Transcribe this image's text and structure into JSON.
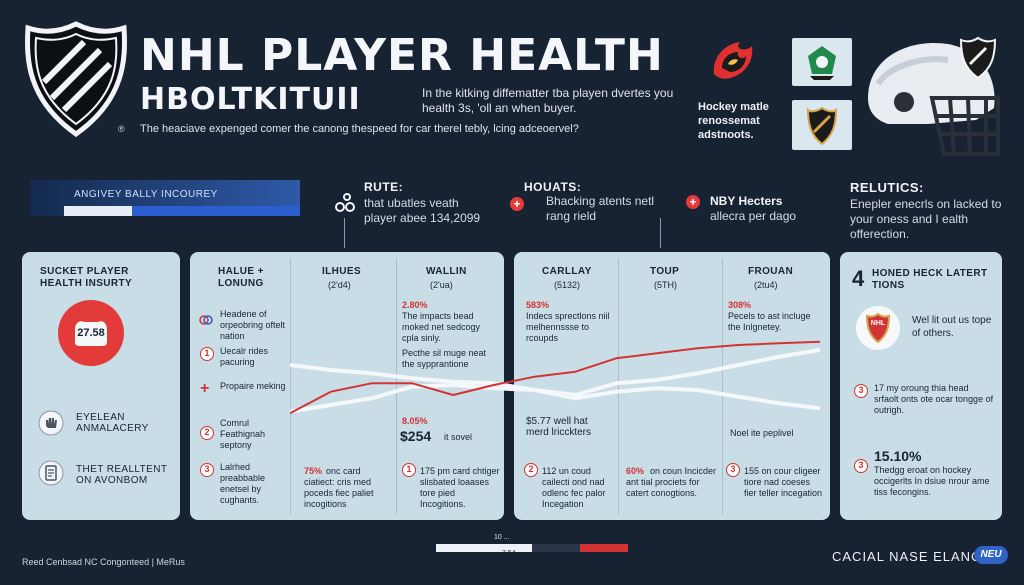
{
  "header": {
    "title_line1": "NHL PLAYER HEALTH",
    "title_line2": "HBOLTKITUII",
    "reg_mark": "®",
    "intro_text": "In the kitking diffematter tba playen dvertes you health 3s, 'oll an when buyer.",
    "description": "The heaciave expenged comer the canong thespeed for car therel tebly, lcing adceoervel?",
    "hockey_text": "Hockey matle renossemat adstnoots.",
    "logo_text": "NHL"
  },
  "top_bar": {
    "label": "ANGIVEY BALLY INCOUREY",
    "fill_pct": 0.25
  },
  "mid_labels": {
    "rute_title": "RUTE:",
    "rute_text": "that ubatles veath player abee 134,2099",
    "houats_title": "HOUATS:",
    "houats_text": "Bhacking atents netl rang rield",
    "nby_title": "NBY Hecters",
    "nby_text": "allecra per dago",
    "relutics_title": "RELUTICS:",
    "relutics_text": "Enepler enecrls on lacked to your oness and I ealth offerection."
  },
  "panel1": {
    "title": "SUCKET PLAYER HEALTH INSURTY",
    "badge_value": "27.58",
    "item1": "EYELEAN ANMALACERY",
    "item2": "THET REALLTENT ON AVONBOM"
  },
  "panel2": {
    "col_headers": [
      {
        "title": "HALUE + LONUNG",
        "sub": ""
      },
      {
        "title": "ILHUES",
        "sub": "(2'd4)"
      },
      {
        "title": "WALLIN",
        "sub": "(2'ua)"
      }
    ],
    "list": [
      {
        "num": "",
        "text": "Headene of orpeobring oftelt nation"
      },
      {
        "num": "1",
        "text": "Uecalr rides pacuring"
      },
      {
        "num": "",
        "text": "Propaire meking"
      },
      {
        "num": "2",
        "text": "Comrul Feathignah septony"
      },
      {
        "num": "3",
        "text": "Lalrhed preabbable enetsel by cughants."
      }
    ],
    "stat_pct": "2.80%",
    "stat_text": "The impacts bead moked net sedcogy cpla sinly.",
    "practice_text": "Pecthe sil muge neat the sypprantione",
    "value_pct": "8.05%",
    "value_big": "$254",
    "value_suffix": "it sovel",
    "bottom1_pct": "75%",
    "bottom1_text": "onc card ciatiect: cris med poceds fiec paliet incogitions",
    "bottom2_num": "1",
    "bottom2_text": "175 pm card chtiger slisbated loaases tore pied Incogitions."
  },
  "panel3": {
    "col_headers": [
      {
        "title": "CARLLAY",
        "sub": "(5132)"
      },
      {
        "title": "TOUP",
        "sub": "(5TH)"
      },
      {
        "title": "FROUAN",
        "sub": "(2tu4)"
      }
    ],
    "stat1_pct": "583%",
    "stat1_text": "Indecs sprectlons niil melhennssse to rcoupds",
    "stat2_pct": "308%",
    "stat2_text": "Pecels to ast incluge the Inlgnetey.",
    "money_text": "$5.77 well hat merd lricckters",
    "note_text": "Noel ite peplivel",
    "bottom1_num": "2",
    "bottom1_text": "112 un coud cailecti ond nad odlenc fec palor Incegation",
    "bottom2_pct": "60%",
    "bottom2_text": "on coun Incicder ant tial prociets for catert conogtions.",
    "bottom3_num": "3",
    "bottom3_text": "155 on cour cligeer tiore nad coeses fier teller incegation"
  },
  "panel4": {
    "count": "4",
    "title": "HONED HECK LATERT TIONS",
    "logo_text": "NHL",
    "item1": "Wel lit out us tope of others.",
    "item2_num": "3",
    "item2": "17 my oroung thia head srfaolt onts ote ocar tongge of outrigh.",
    "item3_num": "3",
    "item3_pct": "15.10%",
    "item3": "Thedgg eroat on hockey occigerlts In dsiue nrour ame tiss fecongins."
  },
  "scale": {
    "label": "10 ...",
    "label2": "3 54",
    "fill_white": 0.5,
    "fill_red": 0.25
  },
  "footer": {
    "left": "Reed Cenbsad NC Congonteed | MeRus",
    "right": "CACIAL NASE ELANCER",
    "badge": "NEU"
  },
  "chart_data": {
    "type": "line",
    "series": [
      {
        "values": [
          2,
          3.3,
          3.8,
          3.8,
          3.1,
          3.7,
          4.2,
          4.5,
          5.3,
          5.6,
          5.9,
          6.1,
          6.2,
          6.3
        ]
      },
      {
        "values": [
          2.1,
          2.5,
          2.9,
          3.6,
          3.7,
          3.5,
          3.4,
          2.9,
          3.3,
          3.5,
          3.4,
          3.0,
          2.6,
          2.3
        ]
      },
      {
        "values": [
          4.9,
          4.6,
          4.4,
          4.1,
          3.9,
          3.8,
          3.4,
          3.1,
          3.8,
          4.0,
          4.4,
          4.9,
          5.4,
          5.8
        ]
      }
    ]
  }
}
